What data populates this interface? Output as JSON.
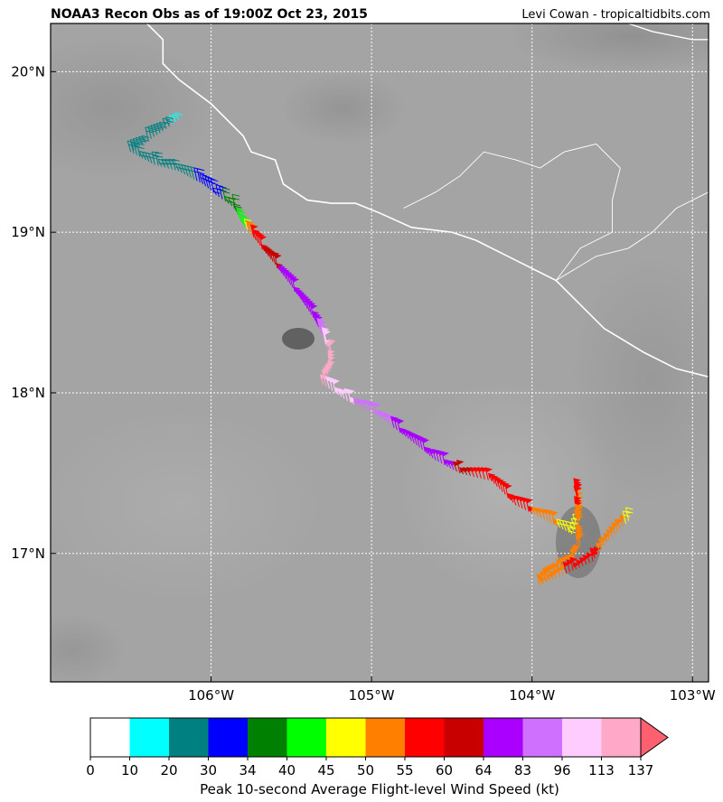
{
  "header": {
    "title": "NOAA3 Recon Obs as of 19:00Z Oct 23, 2015",
    "credit": "Levi Cowan - tropicaltidbits.com"
  },
  "map": {
    "lon_range": [
      -107.0,
      -102.9
    ],
    "lat_range": [
      16.2,
      20.3
    ],
    "lon_ticks": [
      {
        "value": -106,
        "label": "106°W"
      },
      {
        "value": -105,
        "label": "105°W"
      },
      {
        "value": -104,
        "label": "104°W"
      },
      {
        "value": -103,
        "label": "103°W"
      }
    ],
    "lat_ticks": [
      {
        "value": 20,
        "label": "20°N"
      },
      {
        "value": 19,
        "label": "19°N"
      },
      {
        "value": 18,
        "label": "18°N"
      },
      {
        "value": 17,
        "label": "17°N"
      }
    ],
    "grid": true,
    "background": "grayscale satellite imagery",
    "coastline_color": "#ffffff",
    "coastline": [
      [
        -106.4,
        20.3
      ],
      [
        -106.3,
        20.2
      ],
      [
        -106.3,
        20.05
      ],
      [
        -106.2,
        19.95
      ],
      [
        -106.0,
        19.8
      ],
      [
        -105.8,
        19.6
      ],
      [
        -105.75,
        19.5
      ],
      [
        -105.6,
        19.45
      ],
      [
        -105.55,
        19.3
      ],
      [
        -105.4,
        19.2
      ],
      [
        -105.25,
        19.18
      ],
      [
        -105.1,
        19.18
      ],
      [
        -104.95,
        19.12
      ],
      [
        -104.75,
        19.03
      ],
      [
        -104.5,
        19.0
      ],
      [
        -104.35,
        18.95
      ],
      [
        -104.15,
        18.85
      ],
      [
        -103.85,
        18.7
      ],
      [
        -103.55,
        18.4
      ],
      [
        -103.3,
        18.25
      ],
      [
        -103.1,
        18.15
      ],
      [
        -102.9,
        18.1
      ]
    ],
    "coastline_ne": [
      [
        -103.4,
        20.3
      ],
      [
        -103.25,
        20.25
      ],
      [
        -103.0,
        20.2
      ],
      [
        -102.9,
        20.2
      ]
    ],
    "border": [
      [
        -104.8,
        19.15
      ],
      [
        -104.6,
        19.25
      ],
      [
        -104.45,
        19.35
      ],
      [
        -104.3,
        19.5
      ],
      [
        -104.1,
        19.45
      ],
      [
        -103.95,
        19.4
      ],
      [
        -103.8,
        19.5
      ],
      [
        -103.6,
        19.55
      ],
      [
        -103.45,
        19.4
      ],
      [
        -103.5,
        19.2
      ],
      [
        -103.5,
        19.0
      ],
      [
        -103.7,
        18.9
      ],
      [
        -103.85,
        18.7
      ],
      [
        -103.6,
        18.85
      ],
      [
        -103.4,
        18.9
      ],
      [
        -103.25,
        19.0
      ],
      [
        -103.1,
        19.15
      ],
      [
        -102.9,
        19.25
      ]
    ]
  },
  "recon_track": [
    {
      "lon": -106.2,
      "lat": 19.7,
      "wind_kt": 15
    },
    {
      "lon": -106.3,
      "lat": 19.63,
      "wind_kt": 25
    },
    {
      "lon": -106.5,
      "lat": 19.5,
      "wind_kt": 25
    },
    {
      "lon": -106.35,
      "lat": 19.42,
      "wind_kt": 25
    },
    {
      "lon": -106.2,
      "lat": 19.38,
      "wind_kt": 25
    },
    {
      "lon": -106.05,
      "lat": 19.3,
      "wind_kt": 32
    },
    {
      "lon": -105.95,
      "lat": 19.22,
      "wind_kt": 32
    },
    {
      "lon": -105.85,
      "lat": 19.15,
      "wind_kt": 37
    },
    {
      "lon": -105.8,
      "lat": 19.05,
      "wind_kt": 42
    },
    {
      "lon": -105.72,
      "lat": 18.95,
      "wind_kt": 58
    },
    {
      "lon": -105.6,
      "lat": 18.8,
      "wind_kt": 62
    },
    {
      "lon": -105.45,
      "lat": 18.6,
      "wind_kt": 70
    },
    {
      "lon": -105.35,
      "lat": 18.45,
      "wind_kt": 75
    },
    {
      "lon": -105.3,
      "lat": 18.35,
      "wind_kt": 90
    },
    {
      "lon": -105.25,
      "lat": 18.25,
      "wind_kt": 120
    },
    {
      "lon": -105.25,
      "lat": 18.15,
      "wind_kt": 125
    },
    {
      "lon": -105.3,
      "lat": 18.05,
      "wind_kt": 115
    },
    {
      "lon": -105.15,
      "lat": 17.95,
      "wind_kt": 100
    },
    {
      "lon": -104.95,
      "lat": 17.85,
      "wind_kt": 85
    },
    {
      "lon": -104.75,
      "lat": 17.7,
      "wind_kt": 80
    },
    {
      "lon": -104.6,
      "lat": 17.58,
      "wind_kt": 70
    },
    {
      "lon": -104.45,
      "lat": 17.5,
      "wind_kt": 62
    },
    {
      "lon": -104.25,
      "lat": 17.45,
      "wind_kt": 57
    },
    {
      "lon": -104.1,
      "lat": 17.3,
      "wind_kt": 58
    },
    {
      "lon": -103.9,
      "lat": 17.2,
      "wind_kt": 52
    },
    {
      "lon": -103.75,
      "lat": 17.12,
      "wind_kt": 47
    },
    {
      "lon": -103.7,
      "lat": 17.25,
      "wind_kt": 52
    },
    {
      "lon": -103.72,
      "lat": 17.4,
      "wind_kt": 57
    },
    {
      "lon": -103.7,
      "lat": 17.05,
      "wind_kt": 52
    },
    {
      "lon": -103.75,
      "lat": 16.95,
      "wind_kt": 52
    },
    {
      "lon": -103.85,
      "lat": 16.88,
      "wind_kt": 52
    },
    {
      "lon": -103.95,
      "lat": 16.8,
      "wind_kt": 52
    },
    {
      "lon": -103.62,
      "lat": 16.95,
      "wind_kt": 58
    },
    {
      "lon": -103.55,
      "lat": 17.05,
      "wind_kt": 52
    },
    {
      "lon": -103.45,
      "lat": 17.15,
      "wind_kt": 52
    },
    {
      "lon": -103.38,
      "lat": 17.22,
      "wind_kt": 47
    }
  ],
  "colorbar": {
    "label": "Peak 10-second Average Flight-level Wind Speed (kt)",
    "bins": [
      {
        "lo": 0,
        "hi": 10,
        "color": "#ffffff"
      },
      {
        "lo": 10,
        "hi": 20,
        "color": "#00ffff"
      },
      {
        "lo": 20,
        "hi": 30,
        "color": "#008080"
      },
      {
        "lo": 30,
        "hi": 34,
        "color": "#0000ff"
      },
      {
        "lo": 34,
        "hi": 40,
        "color": "#008000"
      },
      {
        "lo": 40,
        "hi": 45,
        "color": "#00ff00"
      },
      {
        "lo": 45,
        "hi": 50,
        "color": "#ffff00"
      },
      {
        "lo": 50,
        "hi": 55,
        "color": "#ff8000"
      },
      {
        "lo": 55,
        "hi": 60,
        "color": "#ff0000"
      },
      {
        "lo": 60,
        "hi": 64,
        "color": "#c80000"
      },
      {
        "lo": 64,
        "hi": 83,
        "color": "#aa00ff"
      },
      {
        "lo": 83,
        "hi": 96,
        "color": "#d070ff"
      },
      {
        "lo": 96,
        "hi": 113,
        "color": "#ffccff"
      },
      {
        "lo": 113,
        "hi": 137,
        "color": "#ffa8c8"
      }
    ],
    "extend_color": "#ff6070",
    "tick_labels": [
      "0",
      "10",
      "20",
      "30",
      "34",
      "40",
      "45",
      "50",
      "55",
      "60",
      "64",
      "83",
      "96",
      "113",
      "137"
    ]
  }
}
